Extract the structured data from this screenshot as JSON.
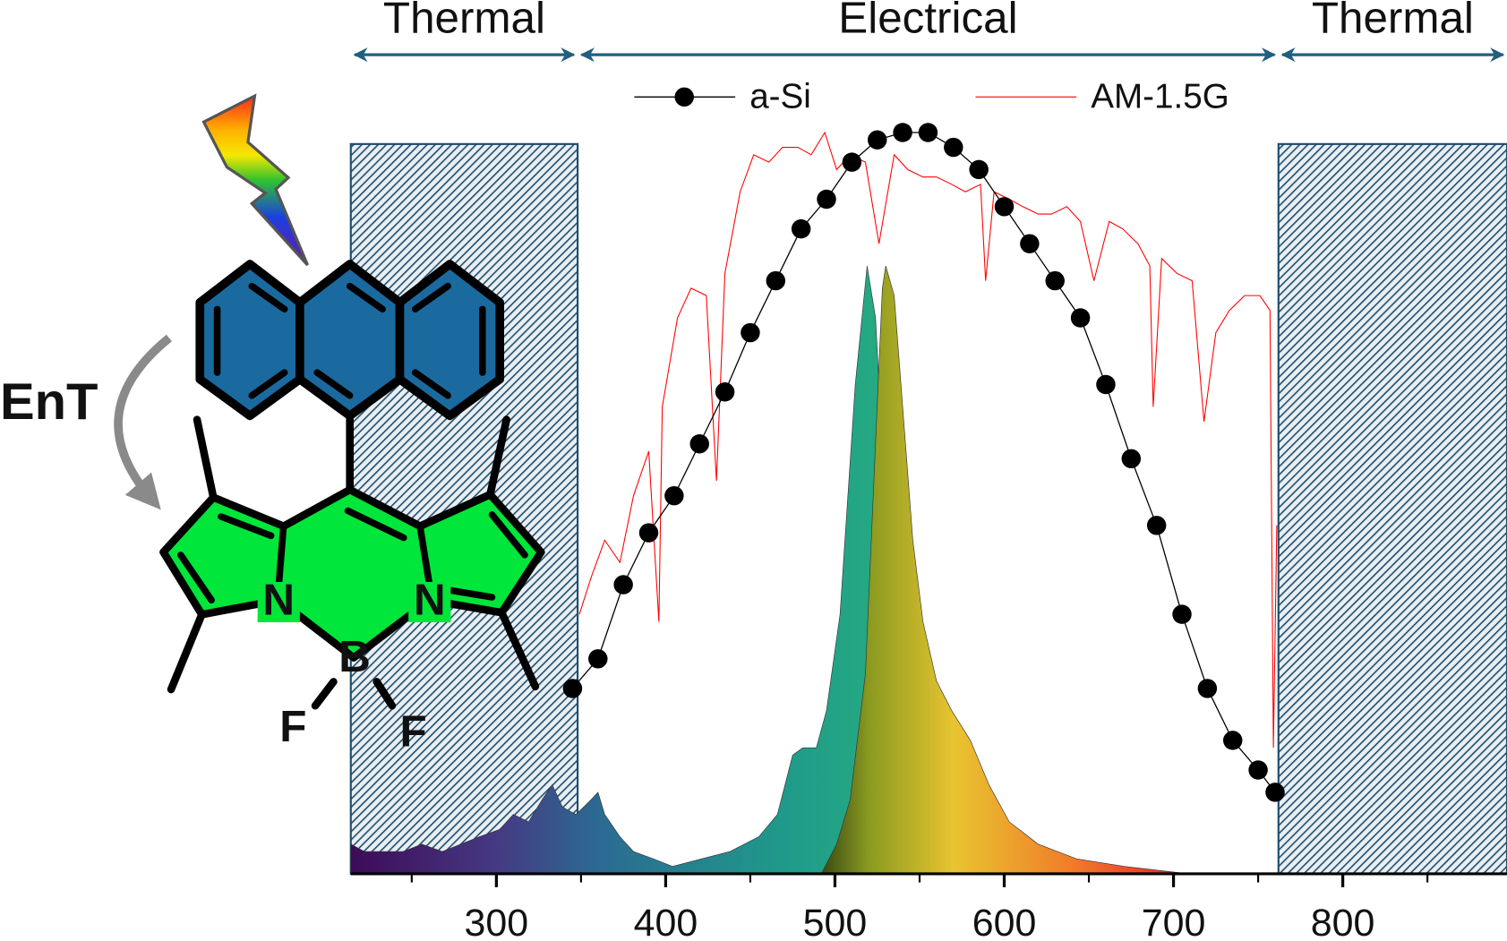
{
  "chart_data": {
    "type": "line",
    "xlim": [
      214,
      897
    ],
    "ylim": [
      0,
      1
    ],
    "xticks": [
      300,
      400,
      500,
      600,
      700,
      800
    ],
    "xminor_ticks": [
      250,
      350,
      450,
      550,
      650,
      750,
      850
    ],
    "axis_color": "#000000",
    "annotation_color": "#1f5f80",
    "region_color": "#1f4e6e",
    "annotations": [
      {
        "text": "Thermal",
        "from": 214,
        "to": 348,
        "hatched": true
      },
      {
        "text": "Electrical",
        "from": 348,
        "to": 762,
        "hatched": false
      },
      {
        "text": "Thermal",
        "from": 762,
        "to": 897,
        "hatched": true
      }
    ],
    "series": [
      {
        "name": "a-Si",
        "color": "#000000",
        "marker": "circle",
        "x": [
          345,
          360,
          375,
          390,
          405,
          420,
          435,
          450,
          465,
          480,
          495,
          510,
          525,
          540,
          555,
          570,
          585,
          600,
          615,
          630,
          645,
          660,
          675,
          690,
          705,
          720,
          735,
          750,
          760
        ],
        "values": [
          0.25,
          0.29,
          0.39,
          0.46,
          0.51,
          0.58,
          0.65,
          0.73,
          0.8,
          0.87,
          0.91,
          0.96,
          0.99,
          1.0,
          1.0,
          0.98,
          0.95,
          0.9,
          0.85,
          0.8,
          0.75,
          0.66,
          0.56,
          0.47,
          0.35,
          0.25,
          0.18,
          0.14,
          0.11
        ]
      },
      {
        "name": "AM-1.5G",
        "color": "#ff0000",
        "marker": "none",
        "x": [
          349,
          356,
          364,
          373,
          381,
          390,
          396,
          398,
          407,
          415,
          424,
          430,
          435,
          444,
          452,
          461,
          469,
          478,
          486,
          494,
          501,
          509,
          518,
          526,
          535,
          543,
          552,
          560,
          569,
          577,
          586,
          589,
          594,
          603,
          611,
          620,
          628,
          637,
          645,
          653,
          662,
          670,
          679,
          686,
          688,
          693,
          702,
          711,
          718,
          725,
          733,
          742,
          751,
          757,
          759,
          761
        ],
        "values": [
          0.35,
          0.4,
          0.45,
          0.42,
          0.51,
          0.57,
          0.34,
          0.63,
          0.75,
          0.79,
          0.78,
          0.53,
          0.81,
          0.92,
          0.97,
          0.96,
          0.98,
          0.98,
          0.97,
          1.0,
          0.95,
          0.97,
          0.96,
          0.85,
          0.97,
          0.95,
          0.94,
          0.94,
          0.93,
          0.92,
          0.93,
          0.8,
          0.92,
          0.91,
          0.9,
          0.89,
          0.89,
          0.9,
          0.88,
          0.8,
          0.88,
          0.87,
          0.85,
          0.82,
          0.63,
          0.83,
          0.81,
          0.8,
          0.61,
          0.73,
          0.76,
          0.78,
          0.78,
          0.76,
          0.17,
          0.47
        ]
      },
      {
        "marker": "fill",
        "gradient": [
          {
            "value": 214,
            "color": "#3d0b58"
          },
          {
            "value": 300,
            "color": "#453983"
          },
          {
            "value": 360,
            "color": "#2c6a92"
          },
          {
            "value": 470,
            "color": "#1f9a8a"
          },
          {
            "value": 546,
            "color": "#27b07f"
          }
        ],
        "x": [
          214,
          222,
          234,
          245,
          256,
          268,
          279,
          290,
          302,
          310,
          319,
          327,
          333,
          339,
          347,
          356,
          360,
          364,
          373,
          381,
          393,
          404,
          421,
          438,
          455,
          466,
          475,
          481,
          489,
          495,
          503,
          512,
          519,
          524,
          529,
          535,
          540,
          546
        ],
        "values": [
          0.04,
          0.03,
          0.03,
          0.03,
          0.04,
          0.03,
          0.04,
          0.05,
          0.06,
          0.08,
          0.07,
          0.1,
          0.12,
          0.09,
          0.08,
          0.1,
          0.11,
          0.08,
          0.05,
          0.03,
          0.02,
          0.01,
          0.02,
          0.03,
          0.05,
          0.08,
          0.16,
          0.17,
          0.17,
          0.22,
          0.35,
          0.66,
          0.82,
          0.75,
          0.53,
          0.27,
          0.04,
          0.0
        ]
      },
      {
        "marker": "fill",
        "gradient": [
          {
            "value": 492,
            "color": "#3a4a14"
          },
          {
            "value": 520,
            "color": "#8a9a20"
          },
          {
            "value": 570,
            "color": "#e8c430"
          },
          {
            "value": 640,
            "color": "#f07c2a"
          },
          {
            "value": 709,
            "color": "#e8202a"
          }
        ],
        "x": [
          492,
          501,
          509,
          518,
          523,
          528,
          530,
          535,
          540,
          546,
          552,
          560,
          569,
          580,
          591,
          603,
          620,
          643,
          671,
          709
        ],
        "values": [
          0.0,
          0.04,
          0.1,
          0.27,
          0.53,
          0.79,
          0.82,
          0.78,
          0.63,
          0.45,
          0.34,
          0.26,
          0.22,
          0.18,
          0.12,
          0.07,
          0.04,
          0.02,
          0.01,
          0.0
        ]
      }
    ]
  },
  "diagram": {
    "energy_transfer": "EnT",
    "atoms": [
      "N",
      "N",
      "B",
      "F",
      "F"
    ]
  }
}
